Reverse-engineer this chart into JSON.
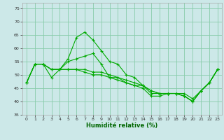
{
  "xlabel": "Humidité relative (%)",
  "background_color": "#cce8e8",
  "grid_color": "#88ccaa",
  "line_color": "#00aa00",
  "ylim": [
    35,
    77
  ],
  "xlim": [
    -0.5,
    23.5
  ],
  "yticks": [
    35,
    40,
    45,
    50,
    55,
    60,
    65,
    70,
    75
  ],
  "xticks": [
    0,
    1,
    2,
    3,
    4,
    5,
    6,
    7,
    8,
    9,
    10,
    11,
    12,
    13,
    14,
    15,
    16,
    17,
    18,
    19,
    20,
    21,
    22,
    23
  ],
  "series": [
    {
      "x": [
        0,
        1,
        2,
        3,
        4,
        5,
        6,
        7,
        8,
        9,
        10,
        11,
        12,
        13,
        14,
        15,
        16,
        17,
        18,
        19,
        20,
        21,
        22,
        23
      ],
      "y": [
        47,
        54,
        54,
        49,
        52,
        56,
        64,
        66,
        63,
        59,
        55,
        54,
        50,
        49,
        46,
        44,
        43,
        43,
        43,
        43,
        41,
        44,
        47,
        52
      ]
    },
    {
      "x": [
        0,
        1,
        2,
        3,
        4,
        5,
        6,
        7,
        8,
        9,
        10,
        11,
        12,
        13,
        14,
        15,
        16,
        17,
        18,
        19,
        20,
        21,
        22,
        23
      ],
      "y": [
        47,
        54,
        54,
        52,
        52,
        55,
        56,
        57,
        58,
        54,
        49,
        49,
        47,
        46,
        46,
        44,
        43,
        43,
        43,
        42,
        40,
        44,
        47,
        52
      ]
    },
    {
      "x": [
        0,
        1,
        2,
        3,
        4,
        5,
        6,
        7,
        8,
        9,
        10,
        11,
        12,
        13,
        14,
        15,
        16,
        17,
        18,
        19,
        20,
        21,
        22,
        23
      ],
      "y": [
        47,
        54,
        54,
        52,
        52,
        52,
        52,
        52,
        51,
        51,
        50,
        49,
        48,
        47,
        46,
        43,
        43,
        43,
        43,
        42,
        40,
        44,
        47,
        52
      ]
    },
    {
      "x": [
        0,
        1,
        2,
        3,
        4,
        5,
        6,
        7,
        8,
        9,
        10,
        11,
        12,
        13,
        14,
        15,
        16,
        17,
        18,
        19,
        20,
        21,
        22,
        23
      ],
      "y": [
        47,
        54,
        54,
        52,
        52,
        52,
        52,
        51,
        50,
        50,
        49,
        48,
        47,
        46,
        45,
        42,
        42,
        43,
        43,
        42,
        40,
        44,
        47,
        52
      ]
    }
  ]
}
